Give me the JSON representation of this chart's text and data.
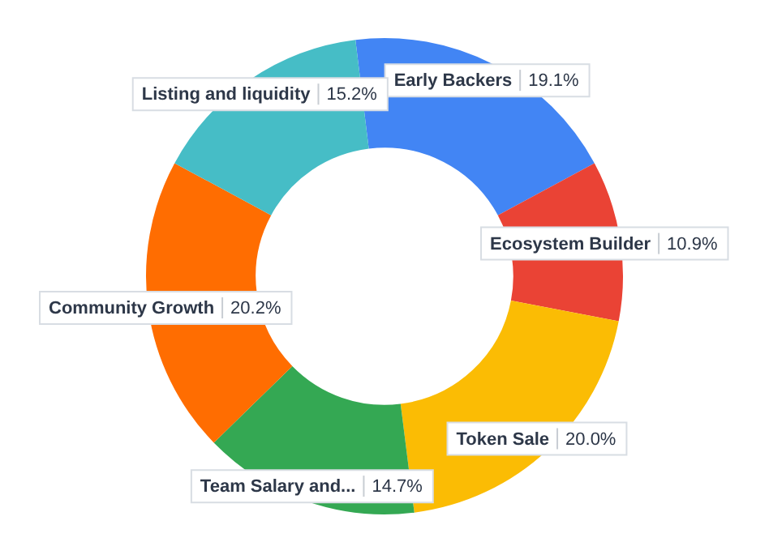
{
  "chart_data": {
    "type": "donut",
    "categories": [
      "Early Backers",
      "Ecosystem Builder",
      "Token Sale",
      "Team Salary and...",
      "Community Growth",
      "Listing and liquidity"
    ],
    "values": [
      19.1,
      10.9,
      20.0,
      14.7,
      20.2,
      15.2
    ],
    "value_labels": [
      "19.1%",
      "10.9%",
      "20.0%",
      "14.7%",
      "20.2%",
      "15.2%"
    ],
    "colors": [
      "#4285f4",
      "#ea4335",
      "#fbbc04",
      "#34a853",
      "#ff6d01",
      "#46bdc6"
    ],
    "legend": false
  }
}
